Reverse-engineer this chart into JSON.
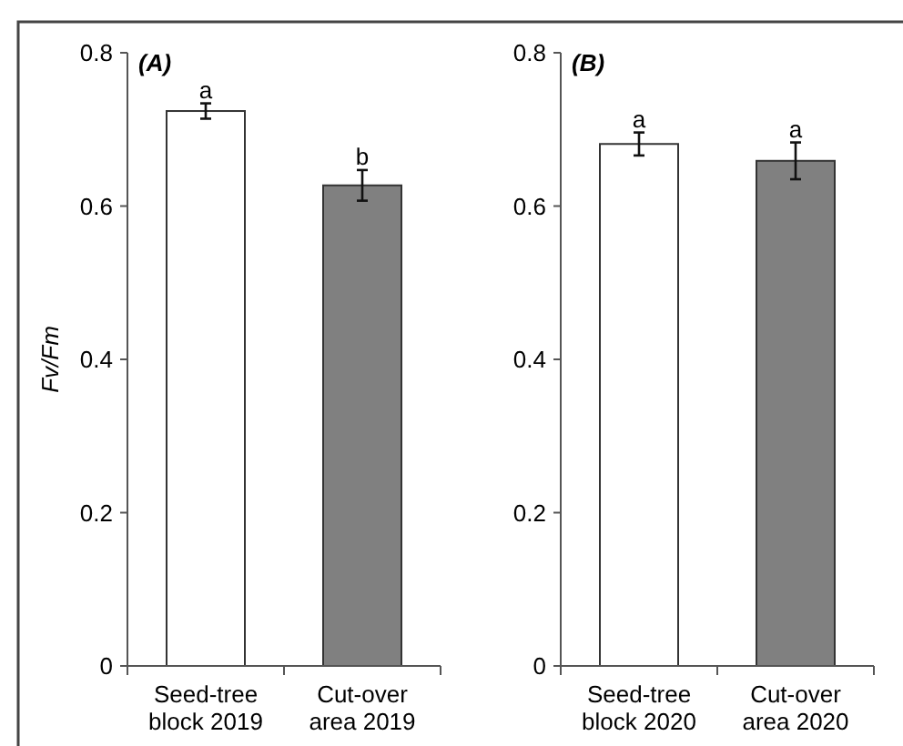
{
  "chart_data": [
    {
      "type": "bar",
      "title": "(A)",
      "ylabel": "Fv/Fm",
      "categories": [
        "Seed-tree block 2019",
        "Cut-over area 2019"
      ],
      "colors": [
        "#ffffff",
        "#808080"
      ],
      "values": [
        0.724,
        0.627
      ],
      "errors": [
        0.01,
        0.02
      ],
      "ylim": [
        0,
        0.8
      ],
      "yticks": [
        0,
        0.2,
        0.4,
        0.6,
        0.8
      ],
      "grid": false,
      "annotations": [
        {
          "text": "a",
          "x": "Seed-tree block 2019",
          "y": 0.734
        },
        {
          "text": "b",
          "x": "Cut-over area 2019",
          "y": 0.647
        }
      ]
    },
    {
      "type": "bar",
      "title": "(B)",
      "categories": [
        "Seed-tree block 2020",
        "Cut-over area 2020"
      ],
      "colors": [
        "#ffffff",
        "#808080"
      ],
      "values": [
        0.681,
        0.659
      ],
      "errors": [
        0.015,
        0.024
      ],
      "ylim": [
        0,
        0.8
      ],
      "yticks": [
        0,
        0.2,
        0.4,
        0.6,
        0.8
      ],
      "grid": false,
      "annotations": [
        {
          "text": "a",
          "x": "Seed-tree block 2020",
          "y": 0.696
        },
        {
          "text": "a",
          "x": "Cut-over area 2020",
          "y": 0.683
        }
      ]
    }
  ]
}
